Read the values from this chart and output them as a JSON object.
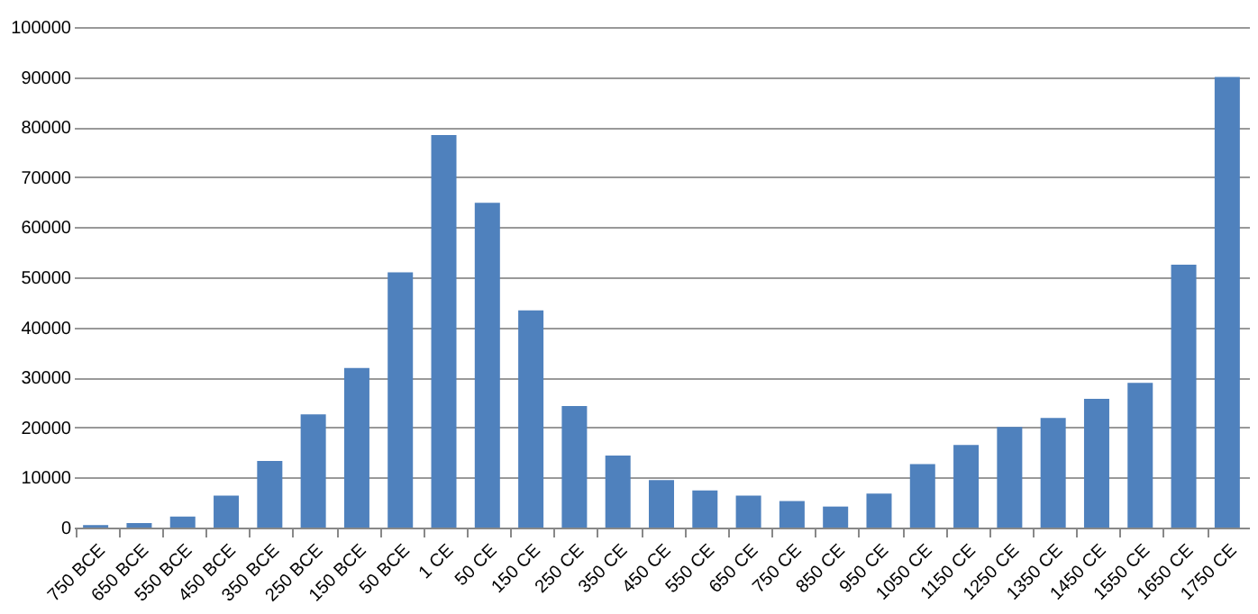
{
  "chart_data": {
    "type": "bar",
    "categories": [
      "750 BCE",
      "650 BCE",
      "550 BCE",
      "450 BCE",
      "350 BCE",
      "250 BCE",
      "150 BCE",
      "50 BCE",
      "1 CE",
      "50 CE",
      "150 CE",
      "250 CE",
      "350 CE",
      "450 CE",
      "550 CE",
      "650 CE",
      "750 CE",
      "850 CE",
      "950 CE",
      "1050 CE",
      "1150 CE",
      "1250 CE",
      "1350 CE",
      "1450 CE",
      "1550 CE",
      "1650 CE",
      "1750 CE"
    ],
    "values": [
      500,
      900,
      2200,
      6400,
      13300,
      22600,
      31900,
      51000,
      78400,
      64900,
      43400,
      24300,
      14400,
      9500,
      7400,
      6400,
      5300,
      4200,
      6800,
      12700,
      16500,
      20100,
      21900,
      25700,
      28900,
      52500,
      90000
    ],
    "color": "#4f81bd",
    "ylim": [
      0,
      100000
    ],
    "yticks": [
      0,
      10000,
      20000,
      30000,
      40000,
      50000,
      60000,
      70000,
      80000,
      90000,
      100000
    ],
    "grid": "y"
  }
}
